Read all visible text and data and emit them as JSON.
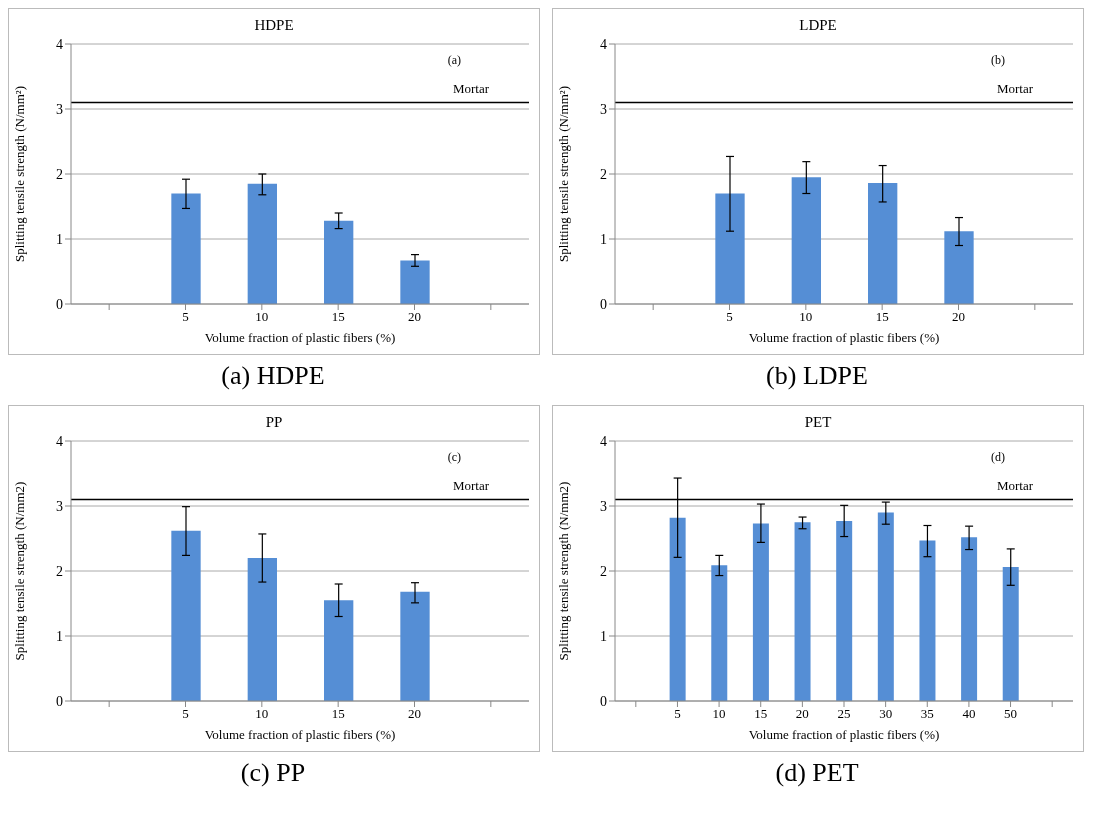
{
  "chart_data": [
    {
      "type": "bar",
      "title": "HDPE",
      "xlabel": "Volume fraction of plastic fibers (%)",
      "ylabel": "Splitting tensile strength (N/mm²)",
      "categories": [
        null,
        "5",
        "10",
        "15",
        "20",
        null
      ],
      "values": [
        null,
        1.7,
        1.85,
        1.28,
        0.67,
        null
      ],
      "errors": [
        null,
        [
          1.47,
          1.92
        ],
        [
          1.68,
          2.0
        ],
        [
          1.16,
          1.4
        ],
        [
          0.58,
          0.76
        ],
        null
      ],
      "color": "#558ed5",
      "ylim": [
        0,
        4
      ],
      "yticks": [
        0,
        1,
        2,
        3,
        4
      ],
      "grid": "y",
      "ref_lines": [
        {
          "axis": "y",
          "value": 3.1,
          "label": "Mortar",
          "color": "#000000"
        }
      ],
      "annotations": [
        "(a)",
        "(a) HDPE"
      ]
    },
    {
      "type": "bar",
      "title": "LDPE",
      "xlabel": "Volume fraction of plastic fibers (%)",
      "ylabel": "Splitting tensile strength (N/mm²)",
      "categories": [
        null,
        "5",
        "10",
        "15",
        "20",
        null
      ],
      "values": [
        null,
        1.7,
        1.95,
        1.86,
        1.12,
        null
      ],
      "errors": [
        null,
        [
          1.12,
          2.27
        ],
        [
          1.7,
          2.19
        ],
        [
          1.57,
          2.13
        ],
        [
          0.9,
          1.33
        ],
        null
      ],
      "color": "#558ed5",
      "ylim": [
        0,
        4
      ],
      "yticks": [
        0,
        1,
        2,
        3,
        4
      ],
      "grid": "y",
      "ref_lines": [
        {
          "axis": "y",
          "value": 3.1,
          "label": "Mortar",
          "color": "#000000"
        }
      ],
      "annotations": [
        "(b)",
        "(b) LDPE"
      ]
    },
    {
      "type": "bar",
      "title": "PP",
      "xlabel": "Volume fraction of plastic fibers (%)",
      "ylabel": "Splitting tensile strength (N/mm2)",
      "categories": [
        null,
        "5",
        "10",
        "15",
        "20",
        null
      ],
      "values": [
        null,
        2.62,
        2.2,
        1.55,
        1.68,
        null
      ],
      "errors": [
        null,
        [
          2.24,
          2.99
        ],
        [
          1.83,
          2.57
        ],
        [
          1.3,
          1.8
        ],
        [
          1.51,
          1.82
        ],
        null
      ],
      "color": "#558ed5",
      "ylim": [
        0,
        4
      ],
      "yticks": [
        0,
        1,
        2,
        3,
        4
      ],
      "grid": "y",
      "ref_lines": [
        {
          "axis": "y",
          "value": 3.1,
          "label": "Mortar",
          "color": "#000000"
        }
      ],
      "annotations": [
        "(c)",
        "(c) PP"
      ]
    },
    {
      "type": "bar",
      "title": "PET",
      "xlabel": "Volume fraction of plastic fibers (%)",
      "ylabel": "Splitting tensile strength (N/mm2)",
      "categories": [
        null,
        "5",
        "10",
        "15",
        "20",
        "25",
        "30",
        "35",
        "40",
        "50",
        null
      ],
      "values": [
        null,
        2.82,
        2.09,
        2.73,
        2.75,
        2.77,
        2.9,
        2.47,
        2.52,
        2.06,
        null
      ],
      "errors": [
        null,
        [
          2.21,
          3.43
        ],
        [
          1.93,
          2.24
        ],
        [
          2.44,
          3.03
        ],
        [
          2.65,
          2.83
        ],
        [
          2.53,
          3.01
        ],
        [
          2.72,
          3.06
        ],
        [
          2.22,
          2.7
        ],
        [
          2.33,
          2.69
        ],
        [
          1.78,
          2.34
        ],
        null
      ],
      "color": "#558ed5",
      "ylim": [
        0,
        4
      ],
      "yticks": [
        0,
        1,
        2,
        3,
        4
      ],
      "grid": "y",
      "ref_lines": [
        {
          "axis": "y",
          "value": 3.1,
          "label": "Mortar",
          "color": "#000000"
        }
      ],
      "annotations": [
        "(d)",
        "(d) PET"
      ]
    }
  ]
}
